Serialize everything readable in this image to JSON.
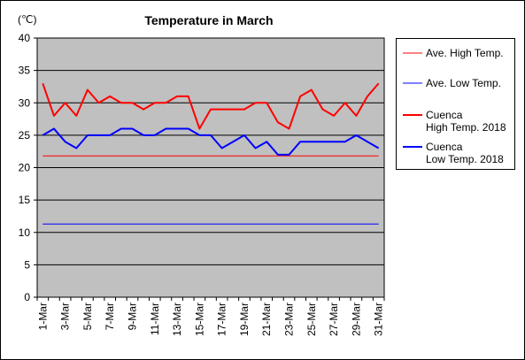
{
  "chart_data": {
    "type": "line",
    "title": "Temperature in March",
    "yunit": "(℃)",
    "ylim": [
      0,
      40
    ],
    "yticks": [
      0,
      5,
      10,
      15,
      20,
      25,
      30,
      35,
      40
    ],
    "x": [
      "1-Mar",
      "2-Mar",
      "3-Mar",
      "4-Mar",
      "5-Mar",
      "6-Mar",
      "7-Mar",
      "8-Mar",
      "9-Mar",
      "10-Mar",
      "11-Mar",
      "12-Mar",
      "13-Mar",
      "14-Mar",
      "15-Mar",
      "16-Mar",
      "17-Mar",
      "18-Mar",
      "19-Mar",
      "20-Mar",
      "21-Mar",
      "22-Mar",
      "23-Mar",
      "24-Mar",
      "25-Mar",
      "26-Mar",
      "27-Mar",
      "28-Mar",
      "29-Mar",
      "30-Mar",
      "31-Mar"
    ],
    "xtick_labels": [
      "1-Mar",
      "3-Mar",
      "5-Mar",
      "7-Mar",
      "9-Mar",
      "11-Mar",
      "13-Mar",
      "15-Mar",
      "17-Mar",
      "19-Mar",
      "21-Mar",
      "23-Mar",
      "25-Mar",
      "27-Mar",
      "29-Mar",
      "31-Mar"
    ],
    "grid": true,
    "legend_position": "right",
    "series": [
      {
        "name": "Ave. High Temp.",
        "color": "#ff0000",
        "width": 1,
        "values": [
          21.8,
          21.8,
          21.8,
          21.8,
          21.8,
          21.8,
          21.8,
          21.8,
          21.8,
          21.8,
          21.8,
          21.8,
          21.8,
          21.8,
          21.8,
          21.8,
          21.8,
          21.8,
          21.8,
          21.8,
          21.8,
          21.8,
          21.8,
          21.8,
          21.8,
          21.8,
          21.8,
          21.8,
          21.8,
          21.8,
          21.8
        ]
      },
      {
        "name": "Ave. Low Temp.",
        "color": "#0000ff",
        "width": 1,
        "values": [
          11.3,
          11.3,
          11.3,
          11.3,
          11.3,
          11.3,
          11.3,
          11.3,
          11.3,
          11.3,
          11.3,
          11.3,
          11.3,
          11.3,
          11.3,
          11.3,
          11.3,
          11.3,
          11.3,
          11.3,
          11.3,
          11.3,
          11.3,
          11.3,
          11.3,
          11.3,
          11.3,
          11.3,
          11.3,
          11.3,
          11.3
        ]
      },
      {
        "name": "Cuenca High Temp. 2018",
        "legend_lines": [
          "Cuenca",
          "High Temp. 2018"
        ],
        "color": "#ff0000",
        "width": 2,
        "values": [
          33,
          28,
          30,
          28,
          32,
          30,
          31,
          30,
          30,
          29,
          30,
          30,
          31,
          31,
          26,
          29,
          29,
          29,
          29,
          30,
          30,
          27,
          26,
          31,
          32,
          29,
          28,
          30,
          28,
          31,
          33
        ]
      },
      {
        "name": "Cuenca Low Temp. 2018",
        "legend_lines": [
          "Cuenca",
          "Low Temp. 2018"
        ],
        "color": "#0000ff",
        "width": 2,
        "values": [
          25,
          26,
          24,
          23,
          25,
          25,
          25,
          26,
          26,
          25,
          25,
          26,
          26,
          26,
          25,
          25,
          23,
          24,
          25,
          23,
          24,
          22,
          22,
          24,
          24,
          24,
          24,
          24,
          25,
          24,
          23
        ]
      }
    ]
  }
}
